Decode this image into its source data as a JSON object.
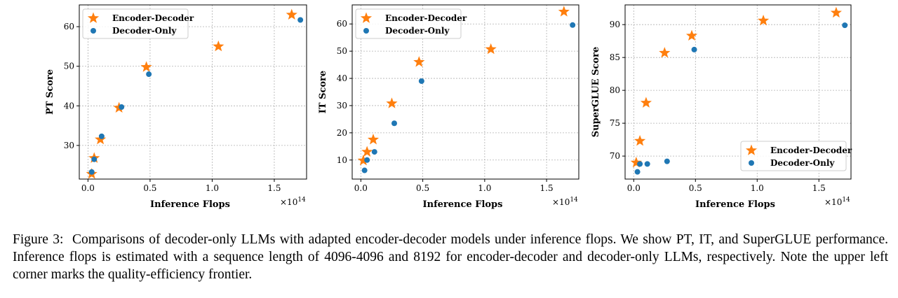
{
  "colors": {
    "encoder_decoder": "#ff7f0e",
    "decoder_only": "#1f77b4",
    "grid": "#b0b0b0"
  },
  "chart_data": [
    {
      "type": "scatter",
      "xlabel": "Inference Flops",
      "ylabel": "PT Score",
      "x_multiplier": "×10",
      "x_multiplier_exp": "14",
      "xlim": [
        -0.07,
        1.76
      ],
      "ylim": [
        21.5,
        65.5
      ],
      "xticks": [
        0.0,
        0.5,
        1.0,
        1.5
      ],
      "xtick_labels": [
        "0.0",
        "0.5",
        "1.0",
        "1.5"
      ],
      "yticks": [
        30,
        40,
        50,
        60
      ],
      "ytick_labels": [
        "30",
        "40",
        "50",
        "60"
      ],
      "legend_position": "upper-left",
      "grid": true,
      "series": [
        {
          "name": "Encoder-Decoder",
          "marker": "star",
          "x": [
            0.03,
            0.05,
            0.1,
            0.25,
            0.47,
            1.05,
            1.64
          ],
          "y": [
            22.8,
            26.8,
            31.5,
            39.5,
            49.8,
            55.0,
            63.0
          ]
        },
        {
          "name": "Decoder-Only",
          "marker": "circle",
          "x": [
            0.03,
            0.05,
            0.11,
            0.27,
            0.49,
            1.71
          ],
          "y": [
            23.3,
            26.5,
            32.3,
            39.7,
            48.0,
            61.7
          ]
        }
      ]
    },
    {
      "type": "scatter",
      "xlabel": "Inference Flops",
      "ylabel": "IT Score",
      "x_multiplier": "×10",
      "x_multiplier_exp": "14",
      "xlim": [
        -0.07,
        1.76
      ],
      "ylim": [
        3,
        67
      ],
      "xticks": [
        0.0,
        0.5,
        1.0,
        1.5
      ],
      "xtick_labels": [
        "0.0",
        "0.5",
        "1.0",
        "1.5"
      ],
      "yticks": [
        10,
        20,
        30,
        40,
        50,
        60
      ],
      "ytick_labels": [
        "10",
        "20",
        "30",
        "40",
        "50",
        "60"
      ],
      "legend_position": "upper-left",
      "grid": true,
      "series": [
        {
          "name": "Encoder-Decoder",
          "marker": "star",
          "x": [
            0.02,
            0.05,
            0.1,
            0.25,
            0.47,
            1.05,
            1.64
          ],
          "y": [
            9.8,
            13.0,
            17.5,
            30.8,
            46.0,
            50.7,
            64.5
          ]
        },
        {
          "name": "Decoder-Only",
          "marker": "circle",
          "x": [
            0.03,
            0.05,
            0.11,
            0.27,
            0.49,
            1.71
          ],
          "y": [
            6.2,
            10.0,
            13.0,
            23.5,
            39.0,
            59.6
          ]
        }
      ]
    },
    {
      "type": "scatter",
      "xlabel": "Inference Flops",
      "ylabel": "SuperGLUE Score",
      "x_multiplier": "×10",
      "x_multiplier_exp": "14",
      "xlim": [
        -0.07,
        1.76
      ],
      "ylim": [
        66.5,
        93.0
      ],
      "xticks": [
        0.0,
        0.5,
        1.0,
        1.5
      ],
      "xtick_labels": [
        "0.0",
        "0.5",
        "1.0",
        "1.5"
      ],
      "yticks": [
        70,
        75,
        80,
        85,
        90
      ],
      "ytick_labels": [
        "70",
        "75",
        "80",
        "85",
        "90"
      ],
      "legend_position": "lower-right",
      "grid": true,
      "series": [
        {
          "name": "Encoder-Decoder",
          "marker": "star",
          "x": [
            0.02,
            0.05,
            0.1,
            0.25,
            0.47,
            1.05,
            1.64
          ],
          "y": [
            69.0,
            72.3,
            78.1,
            85.7,
            88.3,
            90.6,
            91.8
          ]
        },
        {
          "name": "Decoder-Only",
          "marker": "circle",
          "x": [
            0.03,
            0.05,
            0.11,
            0.27,
            0.49,
            1.71
          ],
          "y": [
            67.6,
            68.8,
            68.8,
            69.2,
            86.2,
            89.9
          ]
        }
      ]
    }
  ],
  "caption": {
    "label": "Figure 3:",
    "text": "Comparisons of decoder-only LLMs with adapted encoder-decoder models under inference flops.  We show PT, IT, and SuperGLUE performance. Inference flops is estimated with a sequence length of 4096-4096 and 8192 for encoder-decoder and decoder-only LLMs, respectively. Note the upper left corner marks the quality-efficiency frontier."
  }
}
